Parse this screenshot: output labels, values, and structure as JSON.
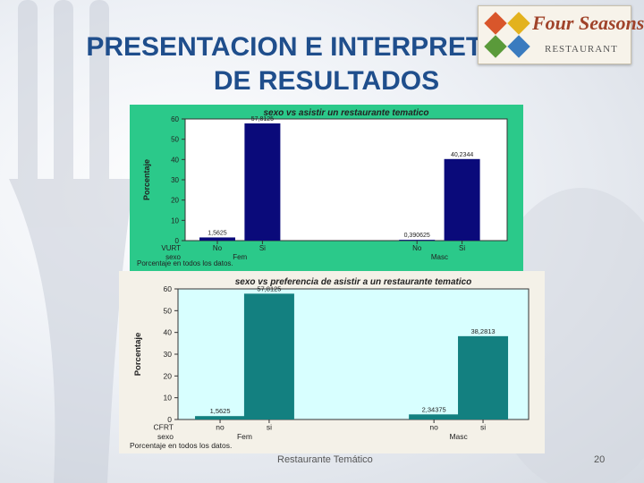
{
  "slide": {
    "title_line1": "PRESENTACION E INTERPRETACIÓN",
    "title_line2": "DE RESULTADOS",
    "footer": "Restaurante Temático",
    "page_number": "20",
    "logo_text": "Four Seasons",
    "logo_sub": "RESTAURANT",
    "title_color": "#1f4e8c"
  },
  "chart_data": [
    {
      "type": "bar",
      "title": "sexo vs asistir un restaurante tematico",
      "ylabel": "Porcentaje",
      "ylim": [
        0,
        60
      ],
      "yticks": [
        "0",
        "10",
        "20",
        "30",
        "40",
        "50",
        "60"
      ],
      "row1_label": "VURT",
      "row2_label": "sexo",
      "groups": [
        "Fem",
        "Masc"
      ],
      "categories": [
        "No",
        "Si",
        "No",
        "Si"
      ],
      "values": [
        1.5625,
        57.8125,
        0.390625,
        40.2344
      ],
      "value_labels": [
        "1,5625",
        "57,8125",
        "0,390625",
        "40,2344"
      ],
      "footnote": "Porcentaje en todos los datos.",
      "bar_color": "#0a0a7a",
      "frame_color": "#2bc98a",
      "plot_bg": "#ffffff"
    },
    {
      "type": "bar",
      "title": "sexo vs preferencia de asistir a un restaurante tematico",
      "ylabel": "Porcentaje",
      "ylim": [
        0,
        60
      ],
      "yticks": [
        "0",
        "10",
        "20",
        "30",
        "40",
        "50",
        "60"
      ],
      "row1_label": "CFRT",
      "row2_label": "sexo",
      "groups": [
        "Fem",
        "Masc"
      ],
      "categories": [
        "no",
        "si",
        "no",
        "si"
      ],
      "values": [
        1.5625,
        57.8125,
        2.34375,
        38.2813
      ],
      "value_labels": [
        "1,5625",
        "57,8125",
        "2,34375",
        "38,2813"
      ],
      "footnote": "Porcentaje en todos los datos.",
      "bar_color": "#138080",
      "frame_color": "#f4f1e8",
      "plot_bg": "#d8ffff"
    }
  ]
}
